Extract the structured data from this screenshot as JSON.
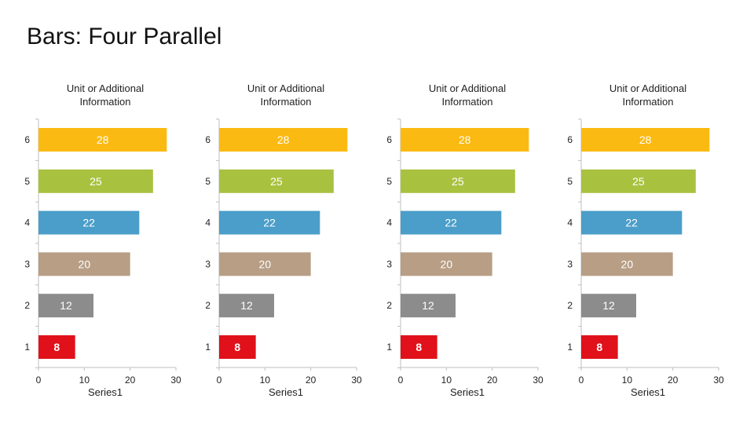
{
  "slide": {
    "title": "Bars: Four Parallel"
  },
  "chart_data": [
    {
      "type": "bar",
      "orientation": "horizontal",
      "title": "Unit or Additional Information",
      "title_lines": [
        "Unit or Additional",
        "Information"
      ],
      "categories": [
        "1",
        "2",
        "3",
        "4",
        "5",
        "6"
      ],
      "values": [
        8,
        12,
        20,
        22,
        25,
        28
      ],
      "value_labels": [
        "8",
        "12",
        "20",
        "22",
        "25",
        "28"
      ],
      "colors": [
        "#e0111a",
        "#8c8c8c",
        "#b79e85",
        "#4a9ec9",
        "#a8c240",
        "#fbba12"
      ],
      "xlim": [
        0,
        30
      ],
      "xticks": [
        "0",
        "10",
        "20",
        "30"
      ],
      "xlabel": "Series1",
      "ylabel": "",
      "grid": false
    },
    {
      "type": "bar",
      "orientation": "horizontal",
      "title": "Unit or Additional Information",
      "title_lines": [
        "Unit or Additional",
        "Information"
      ],
      "categories": [
        "1",
        "2",
        "3",
        "4",
        "5",
        "6"
      ],
      "values": [
        8,
        12,
        20,
        22,
        25,
        28
      ],
      "value_labels": [
        "8",
        "12",
        "20",
        "22",
        "25",
        "28"
      ],
      "colors": [
        "#e0111a",
        "#8c8c8c",
        "#b79e85",
        "#4a9ec9",
        "#a8c240",
        "#fbba12"
      ],
      "xlim": [
        0,
        30
      ],
      "xticks": [
        "0",
        "10",
        "20",
        "30"
      ],
      "xlabel": "Series1",
      "ylabel": "",
      "grid": false
    },
    {
      "type": "bar",
      "orientation": "horizontal",
      "title": "Unit or Additional Information",
      "title_lines": [
        "Unit or Additional",
        "Information"
      ],
      "categories": [
        "1",
        "2",
        "3",
        "4",
        "5",
        "6"
      ],
      "values": [
        8,
        12,
        20,
        22,
        25,
        28
      ],
      "value_labels": [
        "8",
        "12",
        "20",
        "22",
        "25",
        "28"
      ],
      "colors": [
        "#e0111a",
        "#8c8c8c",
        "#b79e85",
        "#4a9ec9",
        "#a8c240",
        "#fbba12"
      ],
      "xlim": [
        0,
        30
      ],
      "xticks": [
        "0",
        "10",
        "20",
        "30"
      ],
      "xlabel": "Series1",
      "ylabel": "",
      "grid": false
    },
    {
      "type": "bar",
      "orientation": "horizontal",
      "title": "Unit or Additional Information",
      "title_lines": [
        "Unit or Additional",
        "Information"
      ],
      "categories": [
        "1",
        "2",
        "3",
        "4",
        "5",
        "6"
      ],
      "values": [
        8,
        12,
        20,
        22,
        25,
        28
      ],
      "value_labels": [
        "8",
        "12",
        "20",
        "22",
        "25",
        "28"
      ],
      "colors": [
        "#e0111a",
        "#8c8c8c",
        "#b79e85",
        "#4a9ec9",
        "#a8c240",
        "#fbba12"
      ],
      "xlim": [
        0,
        30
      ],
      "xticks": [
        "0",
        "10",
        "20",
        "30"
      ],
      "xlabel": "Series1",
      "ylabel": "",
      "grid": false
    }
  ]
}
